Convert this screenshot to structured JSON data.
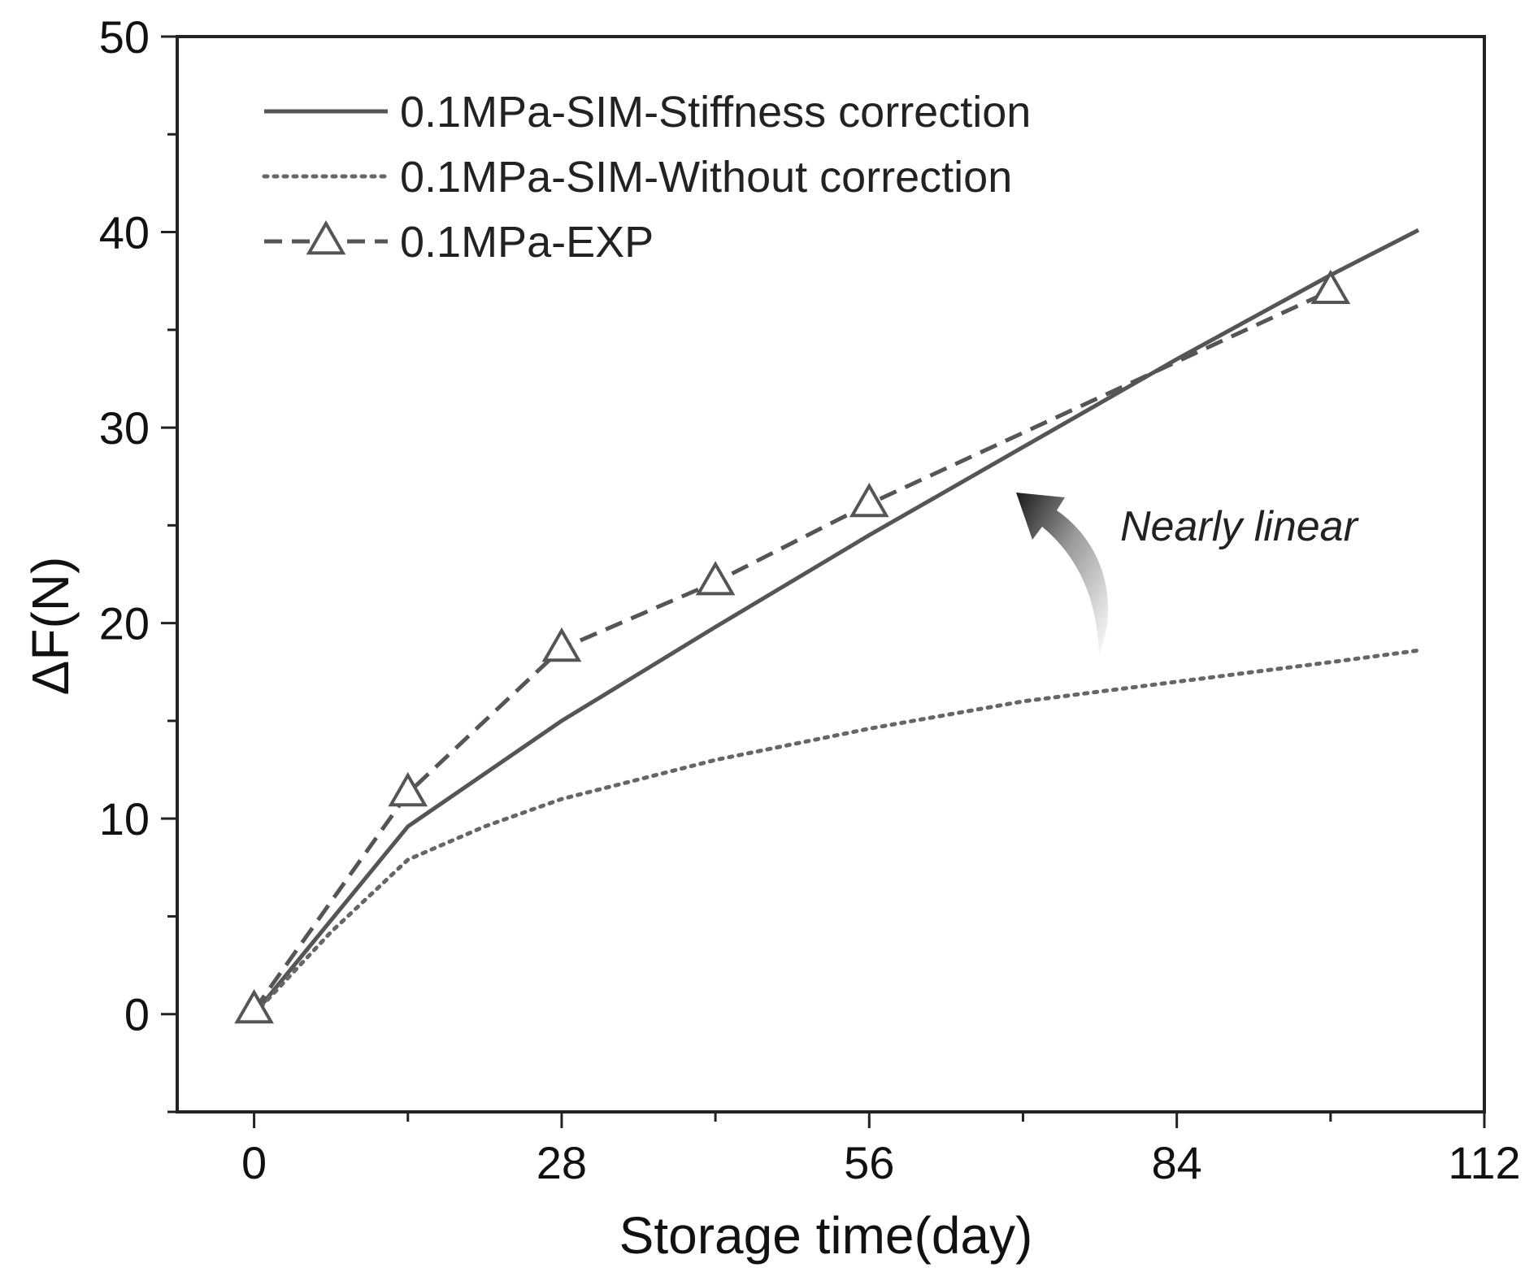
{
  "chart_data": {
    "type": "line",
    "title": "",
    "xlabel": "Storage time(day)",
    "ylabel": "ΔF(N)",
    "xlim": [
      -7,
      112
    ],
    "ylim": [
      -5,
      50
    ],
    "xticks": [
      0,
      28,
      56,
      84,
      112
    ],
    "yticks": [
      0,
      10,
      20,
      30,
      40,
      50
    ],
    "x_minor_ticks": [
      14,
      42,
      70,
      98
    ],
    "y_minor_ticks": [
      -5,
      5,
      15,
      25,
      35,
      45
    ],
    "xtick_labels": [
      "0",
      "28",
      "56",
      "84",
      "112"
    ],
    "ytick_labels": [
      "0",
      "10",
      "20",
      "30",
      "40",
      "50"
    ],
    "grid": false,
    "legend_position": "top-left",
    "series": [
      {
        "name": "0.1MPa-SIM-Stiffness correction",
        "style": "solid",
        "color": "#555555",
        "x": [
          0,
          14,
          28,
          42,
          56,
          70,
          84,
          98,
          106
        ],
        "y": [
          0,
          9.6,
          15,
          19.8,
          24.5,
          29,
          33.5,
          37.8,
          40.1
        ]
      },
      {
        "name": "0.1MPa-SIM-Without correction",
        "style": "dotted",
        "color": "#666666",
        "x": [
          0,
          7,
          14,
          21,
          28,
          42,
          56,
          70,
          84,
          98,
          106
        ],
        "y": [
          0,
          4.2,
          7.9,
          9.6,
          11,
          13,
          14.6,
          16,
          17,
          18,
          18.6
        ]
      },
      {
        "name": "0.1MPa-EXP",
        "style": "dashed",
        "marker": "open-triangle",
        "color": "#555555",
        "x": [
          0,
          14,
          28,
          42,
          56,
          98
        ],
        "y": [
          0.2,
          11.3,
          18.7,
          22.1,
          26.1,
          37
        ]
      }
    ],
    "annotations": [
      {
        "text": "Nearly linear",
        "style": "italic",
        "arrow": "curved arrow pointing up-left toward the curves"
      }
    ]
  }
}
